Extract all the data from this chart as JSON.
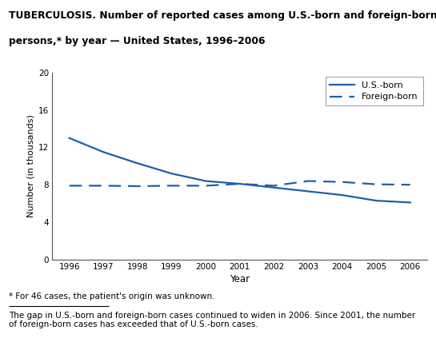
{
  "title_line1": "TUBERCULOSIS. Number of reported cases among U.S.-born and foreign-born",
  "title_line2": "persons,* by year — United States, 1996–2006",
  "years": [
    1996,
    1997,
    1998,
    1999,
    2000,
    2001,
    2002,
    2003,
    2004,
    2005,
    2006
  ],
  "us_born": [
    13.0,
    11.5,
    10.3,
    9.2,
    8.4,
    8.1,
    7.7,
    7.3,
    6.9,
    6.3,
    6.1
  ],
  "foreign_born": [
    7.9,
    7.9,
    7.85,
    7.9,
    7.9,
    8.1,
    7.9,
    8.4,
    8.3,
    8.05,
    8.0
  ],
  "line_color": "#1f5fa6",
  "xlim": [
    1995.5,
    2006.5
  ],
  "ylim": [
    0,
    20
  ],
  "yticks": [
    0,
    4,
    8,
    12,
    16,
    20
  ],
  "xticks": [
    1996,
    1997,
    1998,
    1999,
    2000,
    2001,
    2002,
    2003,
    2004,
    2005,
    2006
  ],
  "xlabel": "Year",
  "ylabel": "Number (in thousands)",
  "legend_us": "U.S.-born",
  "legend_foreign": "Foreign-born",
  "footnote1": "* For 46 cases, the patient's origin was unknown.",
  "footnote2": "The gap in U.S.-born and foreign-born cases continued to widen in 2006. Since 2001, the number\nof foreign-born cases has exceeded that of U.S.-born cases."
}
